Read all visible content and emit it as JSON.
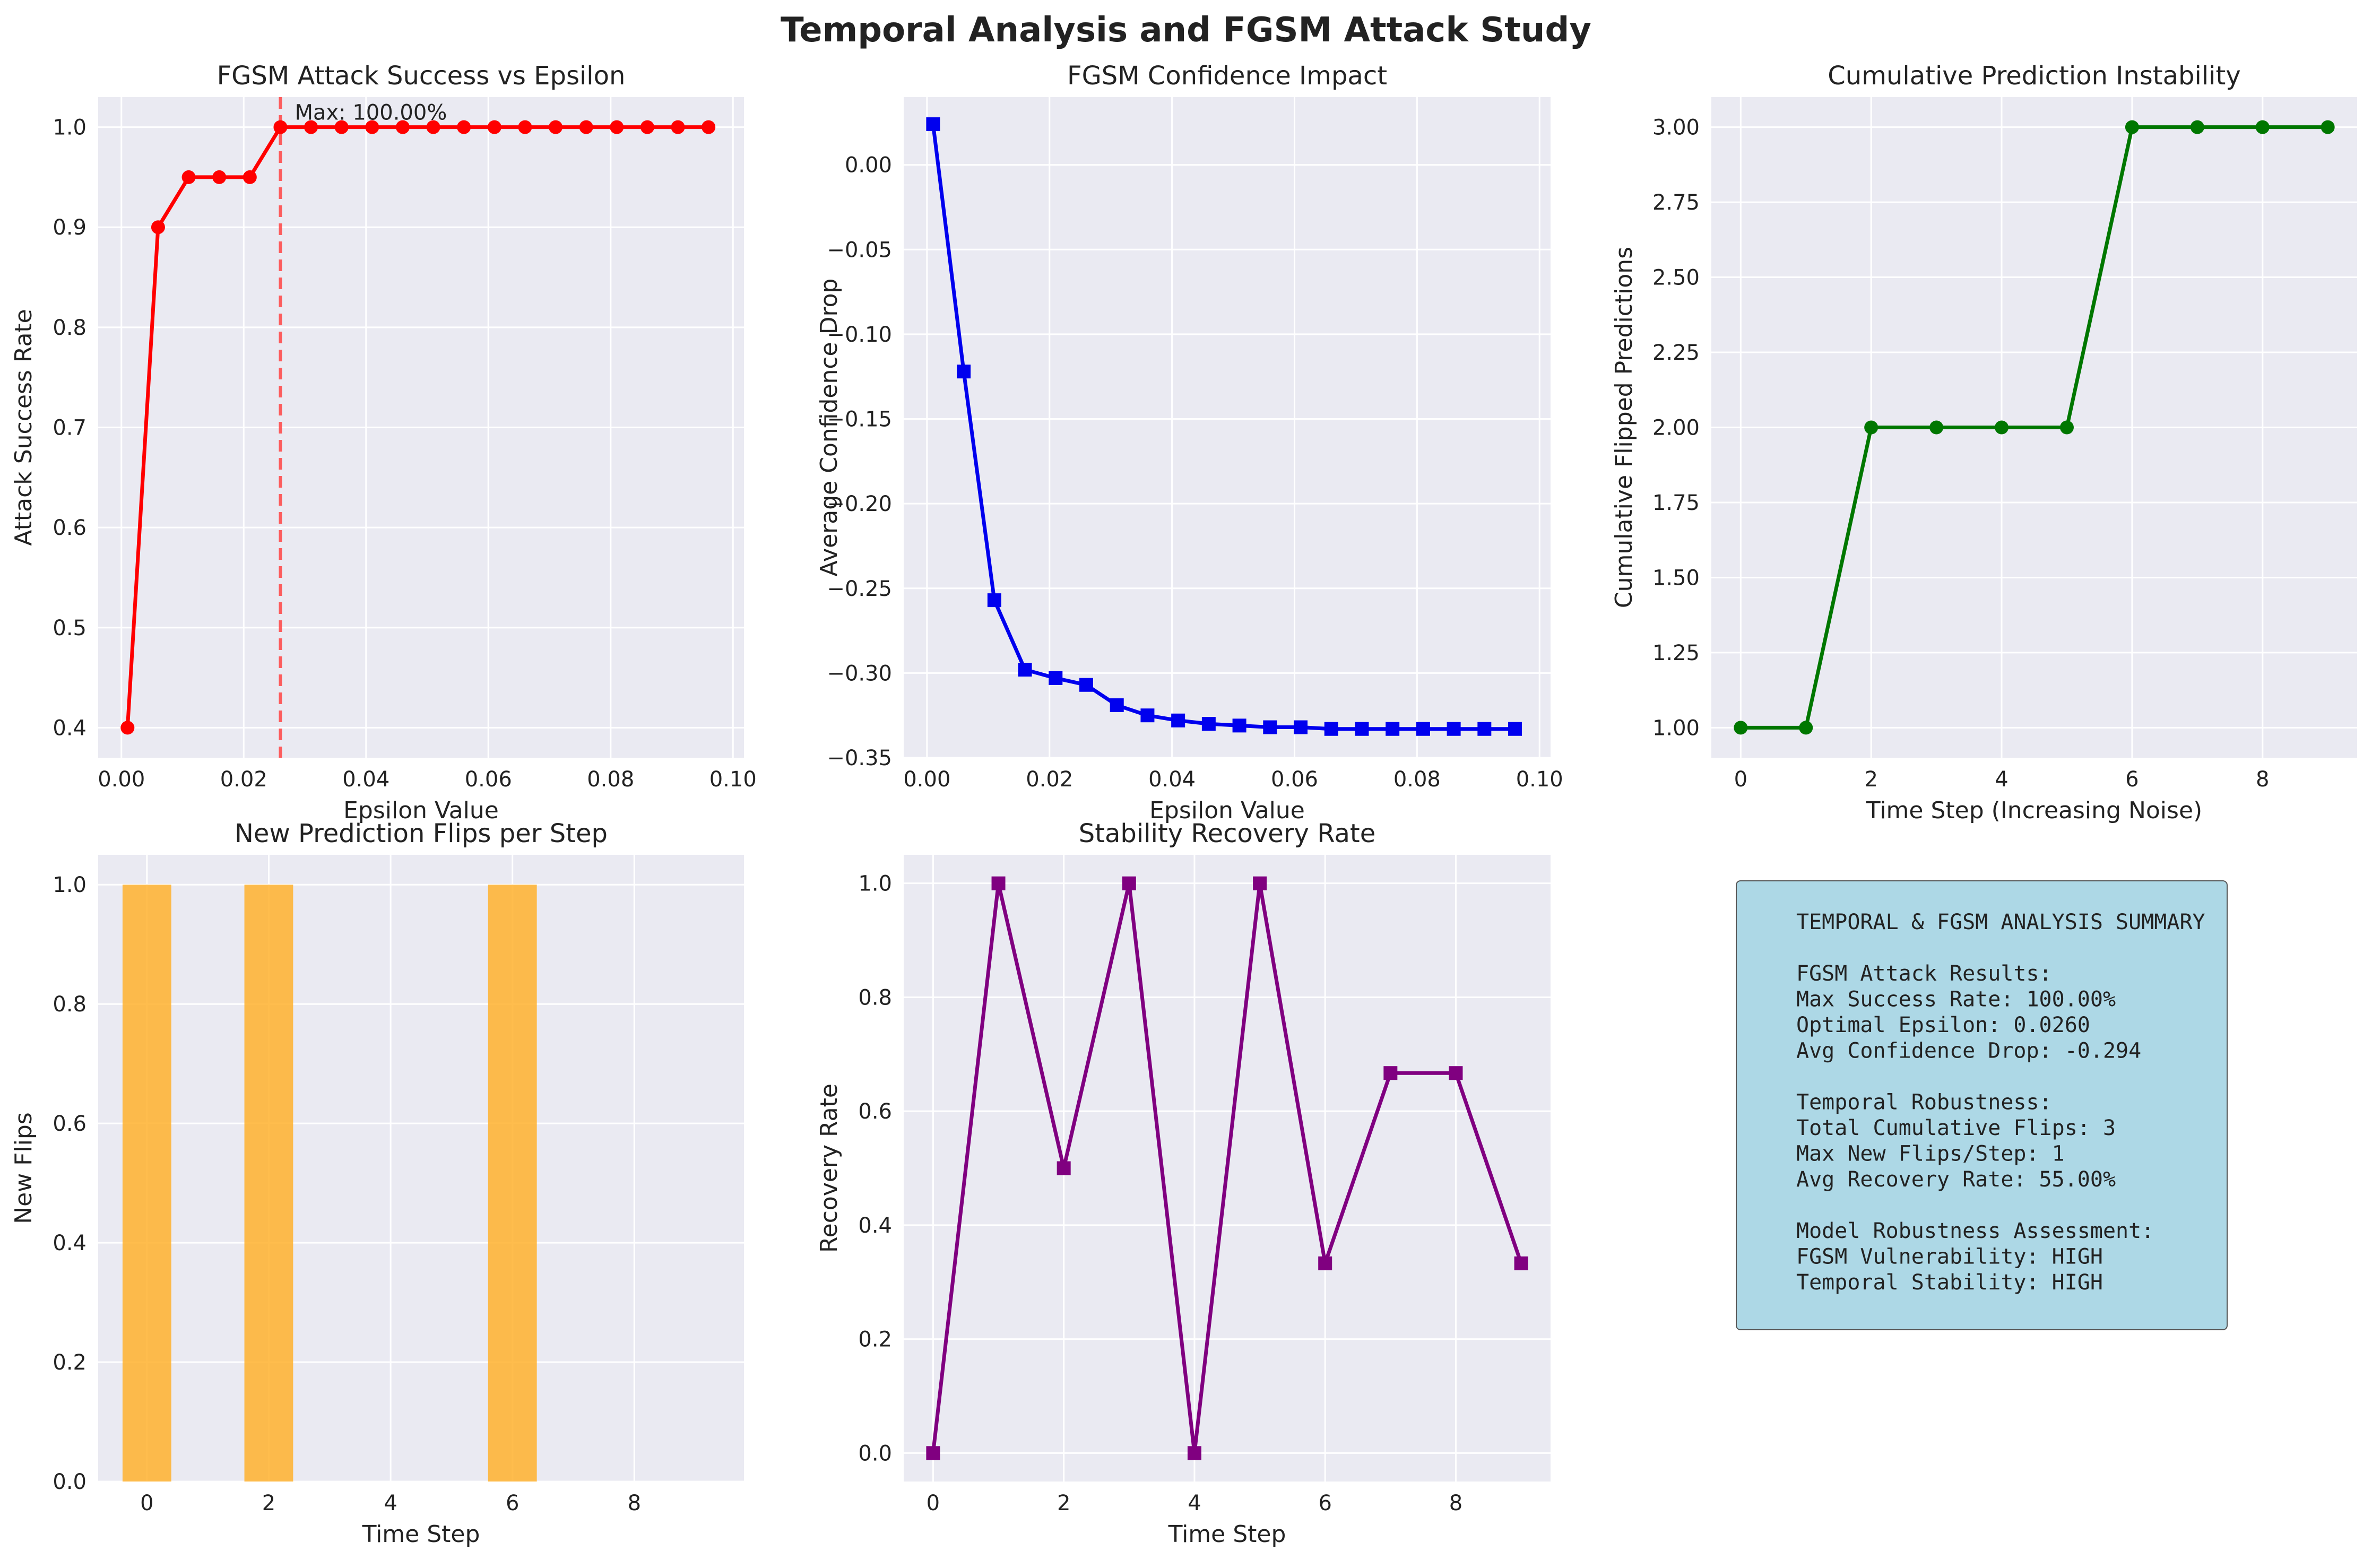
{
  "figure": {
    "suptitle": "Temporal Analysis and FGSM Attack Study"
  },
  "chart_data": [
    {
      "type": "line",
      "title": "FGSM Attack Success vs Epsilon",
      "xlabel": "Epsilon Value",
      "ylabel": "Attack Success Rate",
      "xlim": [
        -0.0038,
        0.1018
      ],
      "ylim": [
        0.37,
        1.03
      ],
      "xticks": [
        0.0,
        0.02,
        0.04,
        0.06,
        0.08,
        0.1
      ],
      "xtick_labels": [
        "0.00",
        "0.02",
        "0.04",
        "0.06",
        "0.08",
        "0.10"
      ],
      "yticks": [
        0.4,
        0.5,
        0.6,
        0.7,
        0.8,
        0.9,
        1.0
      ],
      "ytick_labels": [
        "0.4",
        "0.5",
        "0.6",
        "0.7",
        "0.8",
        "0.9",
        "1.0"
      ],
      "grid": true,
      "series": [
        {
          "color": "#ff0000",
          "marker": "circle",
          "x": [
            0.001,
            0.006,
            0.011,
            0.016,
            0.021,
            0.026,
            0.031,
            0.036,
            0.041,
            0.046,
            0.051,
            0.056,
            0.061,
            0.066,
            0.071,
            0.076,
            0.081,
            0.086,
            0.091,
            0.096
          ],
          "y": [
            0.4,
            0.9,
            0.95,
            0.95,
            0.95,
            1.0,
            1.0,
            1.0,
            1.0,
            1.0,
            1.0,
            1.0,
            1.0,
            1.0,
            1.0,
            1.0,
            1.0,
            1.0,
            1.0,
            1.0
          ]
        }
      ],
      "vline": {
        "x": 0.026,
        "color": "#ff4444"
      },
      "annotation": {
        "text": "Max: 100.00%",
        "x": 0.028,
        "y": 1.0
      }
    },
    {
      "type": "line",
      "title": "FGSM Confidence Impact",
      "xlabel": "Epsilon Value",
      "ylabel": "Average Confidence Drop",
      "xlim": [
        -0.0038,
        0.1018
      ],
      "ylim": [
        -0.35,
        0.04
      ],
      "xticks": [
        0.0,
        0.02,
        0.04,
        0.06,
        0.08,
        0.1
      ],
      "xtick_labels": [
        "0.00",
        "0.02",
        "0.04",
        "0.06",
        "0.08",
        "0.10"
      ],
      "yticks": [
        -0.35,
        -0.3,
        -0.25,
        -0.2,
        -0.15,
        -0.1,
        -0.05,
        0.0
      ],
      "ytick_labels": [
        "−0.35",
        "−0.30",
        "−0.25",
        "−0.20",
        "−0.15",
        "−0.10",
        "−0.05",
        "0.00"
      ],
      "grid": true,
      "series": [
        {
          "color": "#0000ee",
          "marker": "square",
          "x": [
            0.001,
            0.006,
            0.011,
            0.016,
            0.021,
            0.026,
            0.031,
            0.036,
            0.041,
            0.046,
            0.051,
            0.056,
            0.061,
            0.066,
            0.071,
            0.076,
            0.081,
            0.086,
            0.091,
            0.096
          ],
          "y": [
            0.024,
            -0.122,
            -0.257,
            -0.298,
            -0.303,
            -0.307,
            -0.319,
            -0.325,
            -0.328,
            -0.33,
            -0.331,
            -0.332,
            -0.332,
            -0.333,
            -0.333,
            -0.333,
            -0.333,
            -0.333,
            -0.333,
            -0.333
          ]
        }
      ]
    },
    {
      "type": "line",
      "title": "Cumulative Prediction Instability",
      "xlabel": "Time Step (Increasing Noise)",
      "ylabel": "Cumulative Flipped Predictions",
      "xlim": [
        -0.45,
        9.45
      ],
      "ylim": [
        0.9,
        3.1
      ],
      "xticks": [
        0,
        2,
        4,
        6,
        8
      ],
      "xtick_labels": [
        "0",
        "2",
        "4",
        "6",
        "8"
      ],
      "yticks": [
        1.0,
        1.25,
        1.5,
        1.75,
        2.0,
        2.25,
        2.5,
        2.75,
        3.0
      ],
      "ytick_labels": [
        "1.00",
        "1.25",
        "1.50",
        "1.75",
        "2.00",
        "2.25",
        "2.50",
        "2.75",
        "3.00"
      ],
      "grid": true,
      "series": [
        {
          "color": "#007700",
          "marker": "circle",
          "x": [
            0,
            1,
            2,
            3,
            4,
            5,
            6,
            7,
            8,
            9
          ],
          "y": [
            1,
            1,
            2,
            2,
            2,
            2,
            3,
            3,
            3,
            3
          ]
        }
      ]
    },
    {
      "type": "bar",
      "title": "New Prediction Flips per Step",
      "xlabel": "Time Step",
      "ylabel": "New Flips",
      "xlim": [
        -0.8,
        9.8
      ],
      "ylim": [
        0.0,
        1.05
      ],
      "xticks": [
        0,
        2,
        4,
        6,
        8
      ],
      "xtick_labels": [
        "0",
        "2",
        "4",
        "6",
        "8"
      ],
      "yticks": [
        0.0,
        0.2,
        0.4,
        0.6,
        0.8,
        1.0
      ],
      "ytick_labels": [
        "0.0",
        "0.2",
        "0.4",
        "0.6",
        "0.8",
        "1.0"
      ],
      "grid": true,
      "bar_width": 0.8,
      "series": [
        {
          "color": "#ffb22e",
          "x": [
            0,
            1,
            2,
            3,
            4,
            5,
            6,
            7,
            8,
            9
          ],
          "values": [
            1,
            0,
            1,
            0,
            0,
            0,
            1,
            0,
            0,
            0
          ]
        }
      ]
    },
    {
      "type": "line",
      "title": "Stability Recovery Rate",
      "xlabel": "Time Step",
      "ylabel": "Recovery Rate",
      "xlim": [
        -0.45,
        9.45
      ],
      "ylim": [
        -0.05,
        1.05
      ],
      "xticks": [
        0,
        2,
        4,
        6,
        8
      ],
      "xtick_labels": [
        "0",
        "2",
        "4",
        "6",
        "8"
      ],
      "yticks": [
        0.0,
        0.2,
        0.4,
        0.6,
        0.8,
        1.0
      ],
      "ytick_labels": [
        "0.0",
        "0.2",
        "0.4",
        "0.6",
        "0.8",
        "1.0"
      ],
      "grid": true,
      "series": [
        {
          "color": "#800080",
          "marker": "square",
          "x": [
            0,
            1,
            2,
            3,
            4,
            5,
            6,
            7,
            8,
            9
          ],
          "y": [
            0.0,
            1.0,
            0.5,
            1.0,
            0.0,
            1.0,
            0.333,
            0.667,
            0.667,
            0.333
          ]
        }
      ]
    }
  ],
  "summary": {
    "lines": [
      "TEMPORAL & FGSM ANALYSIS SUMMARY",
      "",
      "FGSM Attack Results:",
      "Max Success Rate: 100.00%",
      "Optimal Epsilon: 0.0260",
      "Avg Confidence Drop: -0.294",
      "",
      "Temporal Robustness:",
      "Total Cumulative Flips: 3",
      "Max New Flips/Step: 1",
      "Avg Recovery Rate: 55.00%",
      "",
      "Model Robustness Assessment:",
      "FGSM Vulnerability: HIGH",
      "Temporal Stability: HIGH"
    ],
    "box_color": "#add8e6"
  },
  "style": {
    "axes_bg": "#eaeaf2",
    "grid_color": "#ffffff"
  }
}
